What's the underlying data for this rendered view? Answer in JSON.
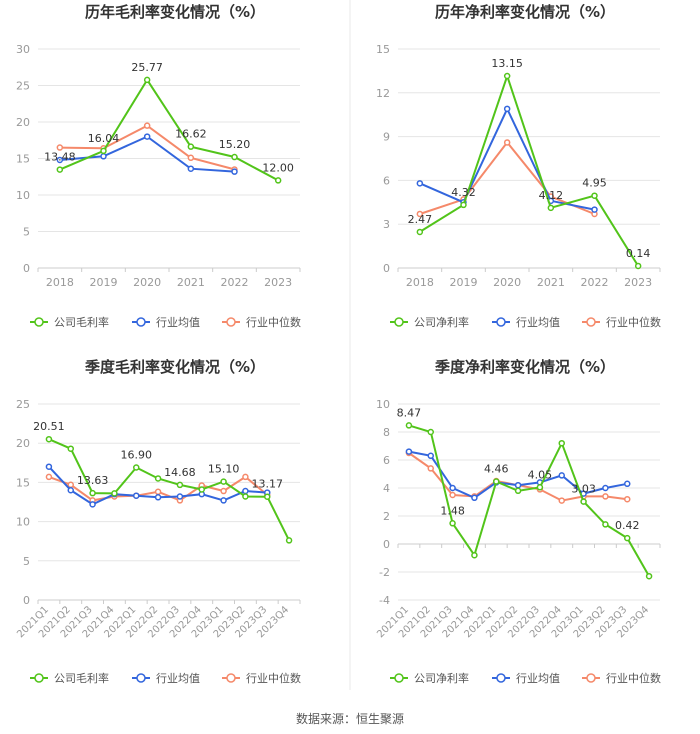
{
  "colors": {
    "company": "#52c41a",
    "avg": "#3366dd",
    "median": "#f5896a",
    "axis": "#999999",
    "grid": "#e5e5e5",
    "text": "#333333",
    "divider": "#e8e8e8"
  },
  "source": "数据来源：恒生聚源",
  "chart_data": [
    {
      "type": "line",
      "title": "历年毛利率变化情况（%）",
      "categories": [
        "2018",
        "2019",
        "2020",
        "2021",
        "2022",
        "2023"
      ],
      "ylim": [
        0,
        30
      ],
      "yticks": [
        0,
        5,
        10,
        15,
        20,
        25,
        30
      ],
      "series": [
        {
          "name": "公司毛利率",
          "key": "company",
          "values": [
            13.48,
            16.04,
            25.77,
            16.62,
            15.2,
            12.0
          ]
        },
        {
          "name": "行业均值",
          "key": "avg",
          "values": [
            14.8,
            15.3,
            18.0,
            13.6,
            13.2,
            null
          ]
        },
        {
          "name": "行业中位数",
          "key": "median",
          "values": [
            16.5,
            16.4,
            19.5,
            15.1,
            13.5,
            null
          ]
        }
      ],
      "labels": [
        {
          "i": 0,
          "text": "13.48"
        },
        {
          "i": 1,
          "text": "16.04"
        },
        {
          "i": 2,
          "text": "25.77"
        },
        {
          "i": 3,
          "text": "16.62"
        },
        {
          "i": 4,
          "text": "15.20"
        },
        {
          "i": 5,
          "text": "12.00"
        }
      ]
    },
    {
      "type": "line",
      "title": "历年净利率变化情况（%）",
      "categories": [
        "2018",
        "2019",
        "2020",
        "2021",
        "2022",
        "2023"
      ],
      "ylim": [
        0,
        15
      ],
      "yticks": [
        0,
        3,
        6,
        9,
        12,
        15
      ],
      "series": [
        {
          "name": "公司净利率",
          "key": "company",
          "values": [
            2.47,
            4.32,
            13.15,
            4.12,
            4.95,
            0.14
          ]
        },
        {
          "name": "行业均值",
          "key": "avg",
          "values": [
            5.8,
            4.5,
            10.9,
            4.6,
            4.0,
            null
          ]
        },
        {
          "name": "行业中位数",
          "key": "median",
          "values": [
            3.7,
            4.7,
            8.6,
            4.9,
            3.7,
            null
          ]
        }
      ],
      "labels": [
        {
          "i": 0,
          "text": "2.47"
        },
        {
          "i": 1,
          "text": "4.32"
        },
        {
          "i": 2,
          "text": "13.15"
        },
        {
          "i": 3,
          "text": "4.12"
        },
        {
          "i": 4,
          "text": "4.95"
        },
        {
          "i": 5,
          "text": "0.14"
        }
      ]
    },
    {
      "type": "line",
      "title": "季度毛利率变化情况（%）",
      "categories": [
        "2021Q1",
        "2021Q2",
        "2021Q3",
        "2021Q4",
        "2022Q1",
        "2022Q2",
        "2022Q3",
        "2022Q4",
        "2023Q1",
        "2023Q2",
        "2023Q3",
        "2023Q4"
      ],
      "ylim": [
        0,
        25
      ],
      "yticks": [
        0,
        5,
        10,
        15,
        20,
        25
      ],
      "series": [
        {
          "name": "公司毛利率",
          "key": "company",
          "values": [
            20.51,
            19.3,
            13.63,
            13.6,
            16.9,
            15.5,
            14.68,
            14.1,
            15.1,
            13.2,
            13.17,
            7.6
          ]
        },
        {
          "name": "行业均值",
          "key": "avg",
          "values": [
            17.0,
            14.0,
            12.2,
            13.5,
            13.3,
            13.1,
            13.2,
            13.5,
            12.7,
            13.9,
            13.7,
            null
          ]
        },
        {
          "name": "行业中位数",
          "key": "median",
          "values": [
            15.7,
            14.7,
            12.7,
            13.2,
            13.3,
            13.8,
            12.7,
            14.6,
            13.9,
            15.7,
            13.4,
            null
          ]
        }
      ],
      "labels": [
        {
          "i": 0,
          "text": "20.51"
        },
        {
          "i": 2,
          "text": "13.63"
        },
        {
          "i": 4,
          "text": "16.90"
        },
        {
          "i": 6,
          "text": "14.68"
        },
        {
          "i": 8,
          "text": "15.10"
        },
        {
          "i": 10,
          "text": "13.17"
        }
      ]
    },
    {
      "type": "line",
      "title": "季度净利率变化情况（%）",
      "categories": [
        "2021Q1",
        "2021Q2",
        "2021Q3",
        "2021Q4",
        "2022Q1",
        "2022Q2",
        "2022Q3",
        "2022Q4",
        "2023Q1",
        "2023Q2",
        "2023Q3",
        "2023Q4"
      ],
      "ylim": [
        -4,
        10
      ],
      "yticks": [
        -4,
        -2,
        0,
        2,
        4,
        6,
        8,
        10
      ],
      "series": [
        {
          "name": "公司净利率",
          "key": "company",
          "values": [
            8.47,
            8.0,
            1.48,
            -0.8,
            4.46,
            3.8,
            4.05,
            7.2,
            3.03,
            1.4,
            0.42,
            -2.3
          ]
        },
        {
          "name": "行业均值",
          "key": "avg",
          "values": [
            6.6,
            6.3,
            4.0,
            3.3,
            4.4,
            4.2,
            4.4,
            4.9,
            3.6,
            4.0,
            4.3,
            null
          ]
        },
        {
          "name": "行业中位数",
          "key": "median",
          "values": [
            6.5,
            5.4,
            3.5,
            3.4,
            4.5,
            4.2,
            3.9,
            3.1,
            3.4,
            3.4,
            3.2,
            null
          ]
        }
      ],
      "labels": [
        {
          "i": 0,
          "text": "8.47"
        },
        {
          "i": 2,
          "text": "1.48"
        },
        {
          "i": 4,
          "text": "4.46"
        },
        {
          "i": 6,
          "text": "4.05"
        },
        {
          "i": 8,
          "text": "3.03"
        },
        {
          "i": 10,
          "text": "0.42"
        }
      ]
    }
  ]
}
